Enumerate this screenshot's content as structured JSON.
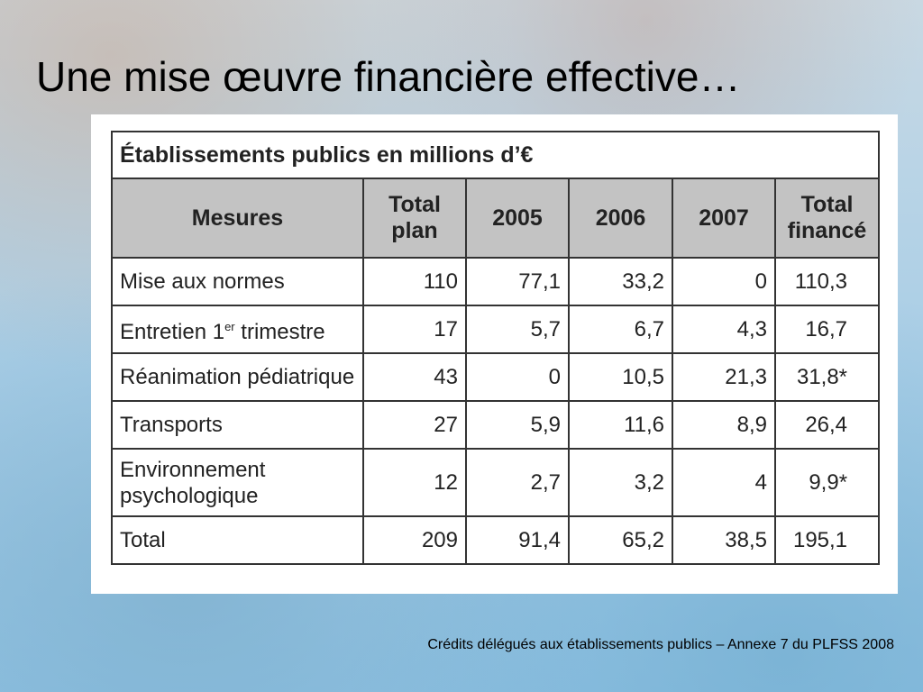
{
  "slide": {
    "title": "Une mise œuvre financière effective…",
    "credits": "Crédits délégués aux établissements publics –  Annexe 7 du PLFSS 2008"
  },
  "table": {
    "caption": "Établissements publics en millions d’€",
    "headers": {
      "mesures": "Mesures",
      "total_plan_1": "Total",
      "total_plan_2": "plan",
      "y2005": "2005",
      "y2006": "2006",
      "y2007": "2007",
      "total_finance_1": "Total",
      "total_finance_2": "financé"
    },
    "rows": [
      {
        "label": "Mise aux normes",
        "total_plan": "110",
        "y2005": "77,1",
        "y2006": "33,2",
        "y2007": "0",
        "total_finance": "110,3"
      },
      {
        "label_prefix": "Entretien 1",
        "label_sup": "er",
        "label_suffix": " trimestre",
        "total_plan": "17",
        "y2005": "5,7",
        "y2006": "6,7",
        "y2007": "4,3",
        "total_finance": "16,7"
      },
      {
        "label": "Réanimation pédiatrique",
        "total_plan": "43",
        "y2005": "0",
        "y2006": "10,5",
        "y2007": "21,3",
        "total_finance": "31,8*"
      },
      {
        "label": "Transports",
        "total_plan": "27",
        "y2005": "5,9",
        "y2006": "11,6",
        "y2007": "8,9",
        "total_finance": "26,4"
      },
      {
        "label_line1": "Environnement",
        "label_line2": "psychologique",
        "total_plan": "12",
        "y2005": "2,7",
        "y2006": "3,2",
        "y2007": "4",
        "total_finance": "9,9*"
      },
      {
        "label": "Total",
        "total_plan": "209",
        "y2005": "91,4",
        "y2006": "65,2",
        "y2007": "38,5",
        "total_finance": "195,1"
      }
    ]
  },
  "colors": {
    "header_fill": "#c3c3c3",
    "border": "#333333",
    "panel": "#ffffff"
  }
}
